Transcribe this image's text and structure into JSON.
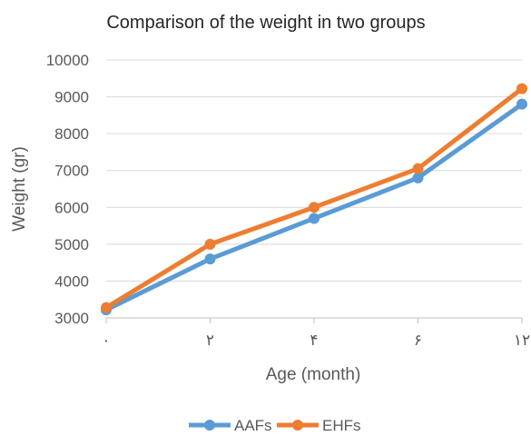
{
  "chart_data": {
    "type": "line",
    "title": "Comparison of the weight in two groups",
    "xlabel": "Age (month)",
    "ylabel": "Weight (gr)",
    "categories": [
      "٠",
      "٢",
      "۴",
      "۶",
      "١٢"
    ],
    "ylim": [
      3000,
      10000
    ],
    "yticks": [
      "3000",
      "4000",
      "5000",
      "6000",
      "7000",
      "8000",
      "9000",
      "10000"
    ],
    "grid": true,
    "legend_position": "bottom",
    "series": [
      {
        "name": "AAFs",
        "color": "#5b9bd5",
        "values": [
          3220,
          4600,
          5700,
          6800,
          8800
        ]
      },
      {
        "name": "EHFs",
        "color": "#ed7d31",
        "values": [
          3280,
          5000,
          6000,
          7050,
          9220
        ]
      }
    ]
  }
}
